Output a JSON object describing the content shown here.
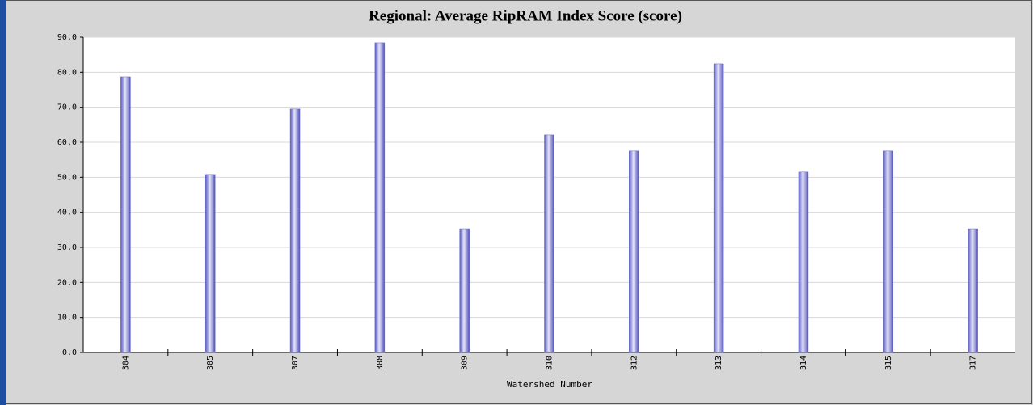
{
  "chart_data": {
    "type": "bar",
    "title": "Regional: Average RipRAM Index Score (score)",
    "x_label": "Watershed Number",
    "categories": [
      "304",
      "305",
      "307",
      "308",
      "309",
      "310",
      "312",
      "313",
      "314",
      "315",
      "317"
    ],
    "values": [
      78.7,
      50.8,
      69.5,
      88.4,
      35.3,
      62.1,
      57.5,
      82.4,
      51.5,
      57.5,
      35.3
    ],
    "color": "#6a6ad0",
    "ylim": [
      0,
      90
    ],
    "yticks": [
      {
        "value": 0,
        "label": "0.0"
      },
      {
        "value": 10,
        "label": "10.0"
      },
      {
        "value": 20,
        "label": "20.0"
      },
      {
        "value": 30,
        "label": "30.0"
      },
      {
        "value": 40,
        "label": "40.0"
      },
      {
        "value": 50,
        "label": "50.0"
      },
      {
        "value": 60,
        "label": "60.0"
      },
      {
        "value": 70,
        "label": "70.0"
      },
      {
        "value": 80,
        "label": "80.0"
      },
      {
        "value": 90,
        "label": "90.0"
      }
    ],
    "grid": true
  }
}
